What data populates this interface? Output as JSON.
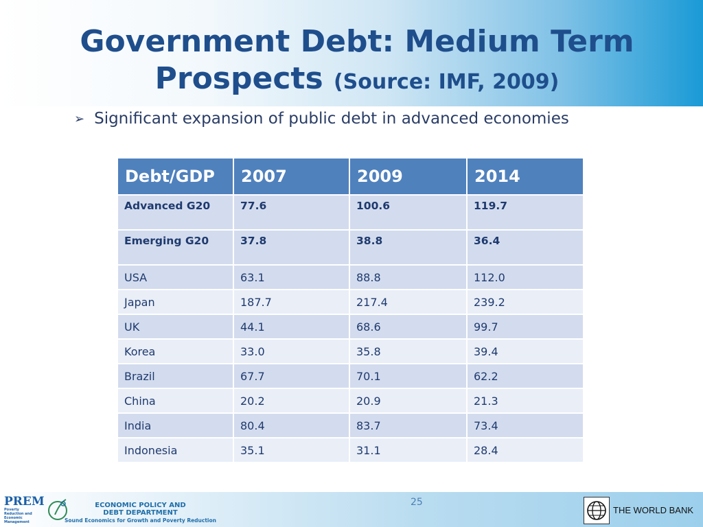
{
  "title": {
    "main": "Government Debt: Medium Term Prospects",
    "source": "(Source: IMF, 2009)"
  },
  "bullet": "Significant expansion of public debt in advanced economies",
  "table": {
    "headers": [
      "Debt/GDP",
      "2007",
      "2009",
      "2014"
    ],
    "rows": [
      [
        "Advanced G20",
        "77.6",
        "100.6",
        "119.7"
      ],
      [
        "Emerging G20",
        "37.8",
        "38.8",
        "36.4"
      ],
      [
        "USA",
        "63.1",
        "88.8",
        "112.0"
      ],
      [
        "Japan",
        "187.7",
        "217.4",
        "239.2"
      ],
      [
        "UK",
        "44.1",
        "68.6",
        "99.7"
      ],
      [
        "Korea",
        "33.0",
        "35.8",
        "39.4"
      ],
      [
        "Brazil",
        "67.7",
        "70.1",
        "62.2"
      ],
      [
        "China",
        "20.2",
        "20.9",
        "21.3"
      ],
      [
        "India",
        "80.4",
        "83.7",
        "73.4"
      ],
      [
        "Indonesia",
        "35.1",
        "31.1",
        "28.4"
      ]
    ]
  },
  "footer": {
    "prem_logo": "PREM",
    "prem_sub": "Poverty Reduction and Economic Management",
    "dept_line1": "ECONOMIC POLICY AND",
    "dept_line2": "DEBT DEPARTMENT",
    "dept_tagline": "Sound Economics for Growth and Poverty Reduction",
    "page_number": "25",
    "world_bank": "THE WORLD BANK"
  },
  "colors": {
    "title": "#1f4e8c",
    "header_cell": "#4f81bd",
    "row_dark": "#d3dcee",
    "row_light": "#e9eef7"
  }
}
